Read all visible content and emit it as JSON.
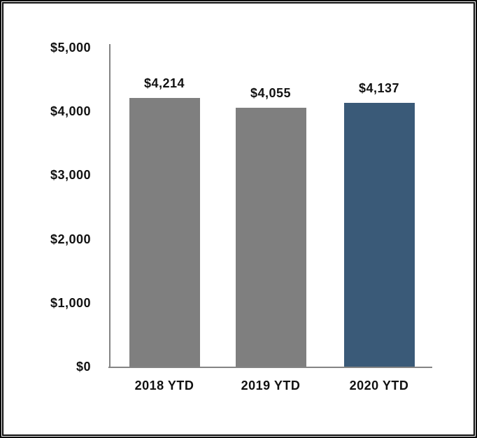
{
  "chart_data": {
    "type": "bar",
    "categories": [
      "2018 YTD",
      "2019 YTD",
      "2020 YTD"
    ],
    "values": [
      4214,
      4055,
      4137
    ],
    "value_labels": [
      "$4,214",
      "$4,055",
      "$4,137"
    ],
    "bar_colors": [
      "#7F7F7F",
      "#7F7F7F",
      "#3A5A78"
    ],
    "title": "",
    "xlabel": "",
    "ylabel": "",
    "ylim": [
      0,
      5000
    ],
    "y_ticks": [
      {
        "value": 5000,
        "label": "$5,000"
      },
      {
        "value": 4000,
        "label": "$4,000"
      },
      {
        "value": 3000,
        "label": "$3,000"
      },
      {
        "value": 2000,
        "label": "$2,000"
      },
      {
        "value": 1000,
        "label": "$1,000"
      },
      {
        "value": 0,
        "label": "$0"
      }
    ],
    "grid": false,
    "legend": false
  },
  "colors": {
    "bar_gray": "#7F7F7F",
    "bar_blue": "#3A5A78",
    "axis_line": "#848484",
    "text": "#111111",
    "frame": "#0A0A0A",
    "background": "#FFFFFF"
  }
}
